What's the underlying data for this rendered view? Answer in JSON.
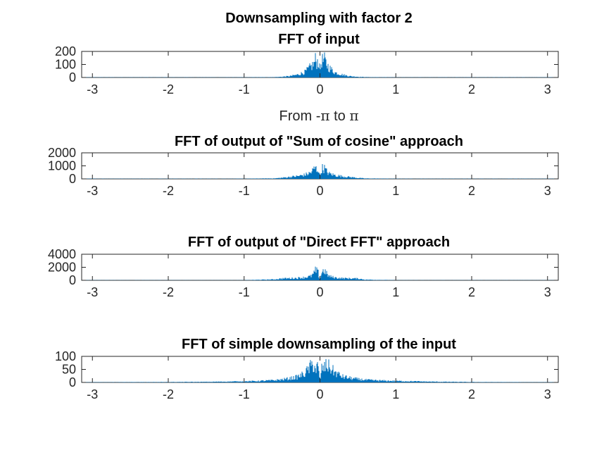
{
  "figure_title": "Downsampling with factor 2",
  "series_color": "#0072BD",
  "chart_data": [
    {
      "type": "area",
      "title": "FFT of input",
      "xlabel": "From -π to π",
      "xlabel_parts": [
        "From -",
        "π",
        " to ",
        "π"
      ],
      "xlim": [
        -3.1416,
        3.1416
      ],
      "ylim": [
        0,
        200
      ],
      "xticks": [
        -3,
        -2,
        -1,
        0,
        1,
        2,
        3
      ],
      "yticks": [
        0,
        100,
        200
      ],
      "xtick_labels": [
        "-3",
        "-2",
        "-1",
        "0",
        "1",
        "2",
        "3"
      ],
      "ytick_labels": [
        "0",
        "100",
        "200"
      ],
      "envelope": {
        "x": [
          -3.14,
          -1.0,
          -0.6,
          -0.5,
          -0.4,
          -0.3,
          -0.2,
          -0.12,
          -0.08,
          -0.06,
          -0.04,
          -0.02,
          -0.01,
          0.0,
          0.01,
          0.02,
          0.04,
          0.06,
          0.08,
          0.12,
          0.2,
          0.3,
          0.4,
          0.5,
          0.6,
          1.0,
          3.14
        ],
        "y": [
          2,
          2,
          4,
          8,
          15,
          30,
          60,
          120,
          150,
          200,
          170,
          190,
          140,
          80,
          130,
          200,
          185,
          195,
          160,
          110,
          55,
          30,
          14,
          8,
          4,
          2,
          2
        ]
      }
    },
    {
      "type": "area",
      "title": "FFT of output of \"Sum of cosine\" approach",
      "xlim": [
        -3.1416,
        3.1416
      ],
      "ylim": [
        0,
        2000
      ],
      "xticks": [
        -3,
        -2,
        -1,
        0,
        1,
        2,
        3
      ],
      "yticks": [
        0,
        1000,
        2000
      ],
      "xtick_labels": [
        "-3",
        "-2",
        "-1",
        "0",
        "1",
        "2",
        "3"
      ],
      "ytick_labels": [
        "0",
        "1000",
        "2000"
      ],
      "envelope": {
        "x": [
          -3.14,
          -1.0,
          -0.6,
          -0.5,
          -0.4,
          -0.3,
          -0.2,
          -0.12,
          -0.08,
          -0.06,
          -0.04,
          -0.02,
          -0.01,
          0.0,
          0.01,
          0.02,
          0.04,
          0.06,
          0.08,
          0.12,
          0.2,
          0.3,
          0.4,
          0.5,
          0.6,
          1.0,
          3.14
        ],
        "y": [
          20,
          20,
          60,
          120,
          220,
          300,
          450,
          700,
          1100,
          1250,
          1000,
          1200,
          600,
          300,
          600,
          1250,
          1150,
          1200,
          900,
          600,
          400,
          280,
          200,
          110,
          50,
          20,
          20
        ]
      }
    },
    {
      "type": "area",
      "title": "FFT of output of \"Direct FFT\" approach",
      "xlim": [
        -3.1416,
        3.1416
      ],
      "ylim": [
        0,
        4000
      ],
      "xticks": [
        -3,
        -2,
        -1,
        0,
        1,
        2,
        3
      ],
      "yticks": [
        0,
        2000,
        4000
      ],
      "xtick_labels": [
        "-3",
        "-2",
        "-1",
        "0",
        "1",
        "2",
        "3"
      ],
      "ytick_labels": [
        "0",
        "2000",
        "4000"
      ],
      "envelope": {
        "x": [
          -3.14,
          -1.0,
          -0.6,
          -0.5,
          -0.4,
          -0.3,
          -0.2,
          -0.12,
          -0.08,
          -0.06,
          -0.04,
          -0.02,
          -0.01,
          0.0,
          0.01,
          0.02,
          0.04,
          0.06,
          0.08,
          0.12,
          0.2,
          0.3,
          0.4,
          0.5,
          0.6,
          1.0,
          3.14
        ],
        "y": [
          30,
          30,
          200,
          400,
          450,
          500,
          650,
          900,
          1500,
          2200,
          2000,
          1600,
          700,
          200,
          900,
          1700,
          2100,
          2200,
          1600,
          900,
          600,
          450,
          420,
          380,
          150,
          30,
          30
        ]
      }
    },
    {
      "type": "area",
      "title": "FFT of simple downsampling of the input",
      "xlim": [
        -3.1416,
        3.1416
      ],
      "ylim": [
        0,
        100
      ],
      "xticks": [
        -3,
        -2,
        -1,
        0,
        1,
        2,
        3
      ],
      "yticks": [
        0,
        50,
        100
      ],
      "xtick_labels": [
        "-3",
        "-2",
        "-1",
        "0",
        "1",
        "2",
        "3"
      ],
      "ytick_labels": [
        "0",
        "50",
        "100"
      ],
      "envelope": {
        "x": [
          -3.14,
          -2.0,
          -1.5,
          -1.0,
          -0.8,
          -0.6,
          -0.5,
          -0.4,
          -0.3,
          -0.2,
          -0.12,
          -0.08,
          -0.05,
          -0.03,
          -0.01,
          0.0,
          0.01,
          0.03,
          0.05,
          0.08,
          0.12,
          0.2,
          0.3,
          0.4,
          0.5,
          0.6,
          0.8,
          1.0,
          1.5,
          2.0,
          3.14
        ],
        "y": [
          1,
          2,
          3,
          6,
          8,
          12,
          16,
          22,
          30,
          50,
          90,
          100,
          70,
          95,
          40,
          10,
          40,
          95,
          70,
          100,
          88,
          55,
          32,
          24,
          18,
          14,
          10,
          8,
          4,
          2,
          1
        ]
      }
    }
  ]
}
